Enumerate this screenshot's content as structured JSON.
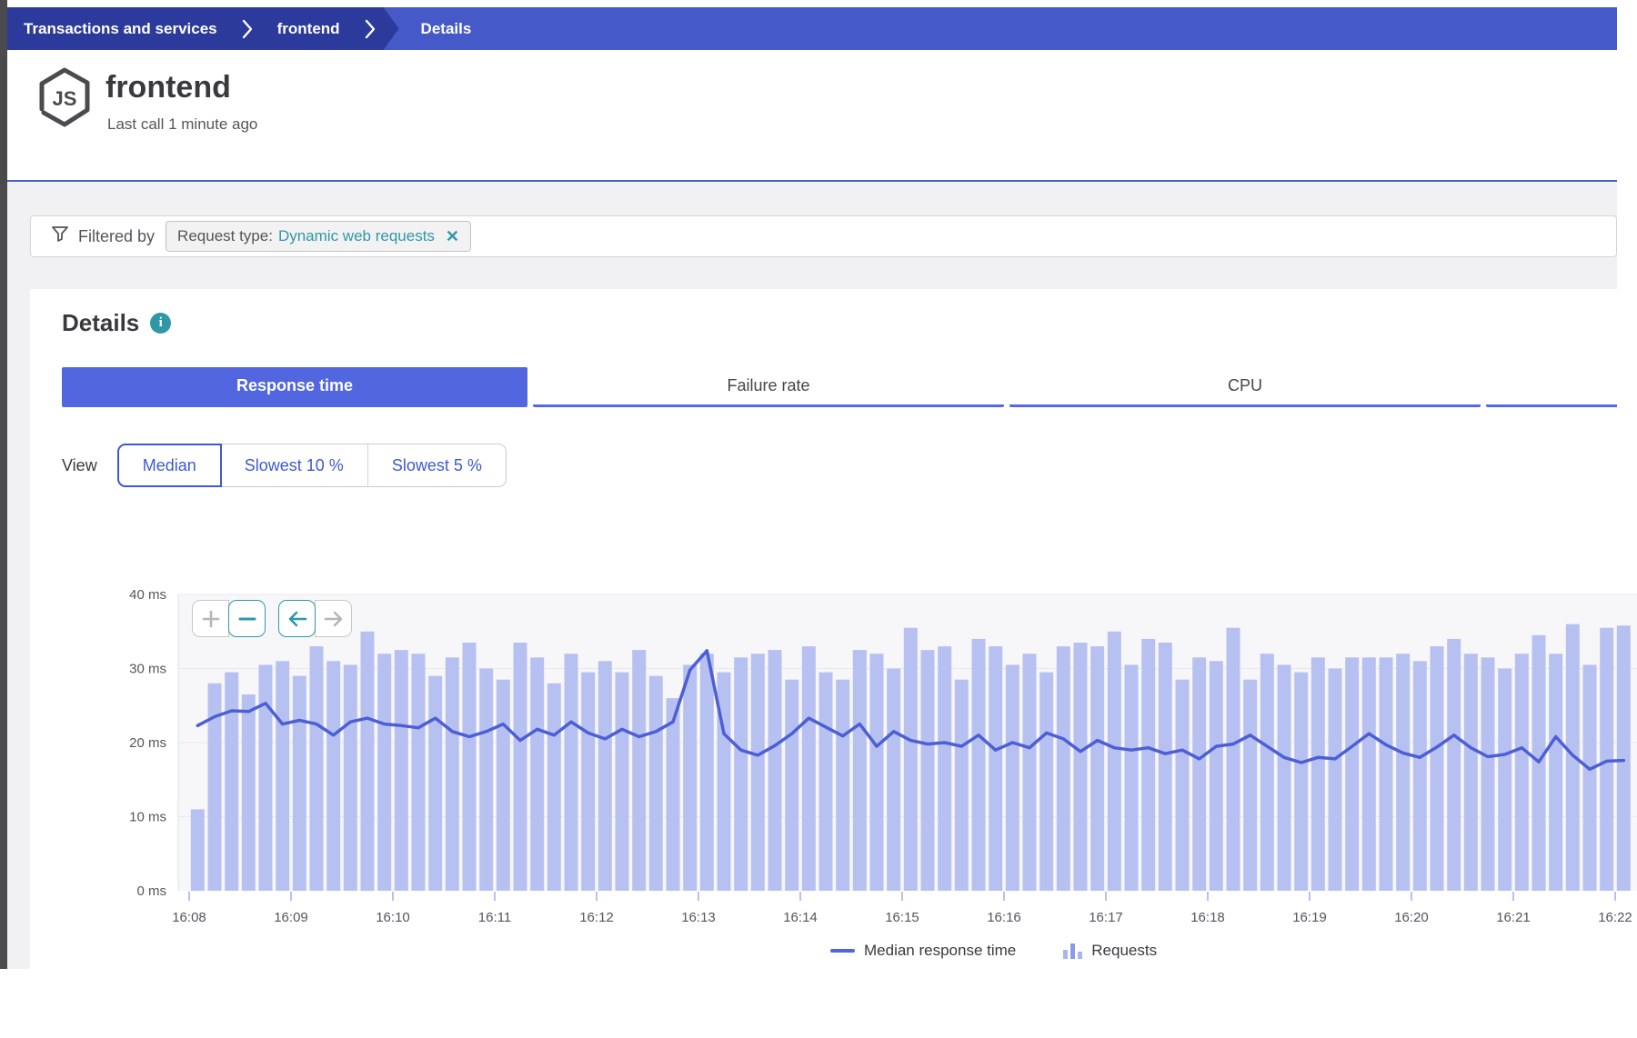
{
  "breadcrumb": {
    "items": [
      "Transactions and services",
      "frontend",
      "Details"
    ]
  },
  "header": {
    "title": "frontend",
    "subtitle": "Last call 1 minute ago",
    "icon": "nodejs-hexagon-icon"
  },
  "filter": {
    "label": "Filtered by",
    "chip": {
      "key": "Request type:",
      "value": "Dynamic web requests",
      "remove_icon": "close-icon"
    }
  },
  "details": {
    "title": "Details",
    "tabs": [
      {
        "label": "Response time",
        "active": true
      },
      {
        "label": "Failure rate",
        "active": false
      },
      {
        "label": "CPU",
        "active": false
      },
      {
        "label": "",
        "active": false
      }
    ],
    "view": {
      "label": "View",
      "options": [
        {
          "label": "Median",
          "selected": true
        },
        {
          "label": "Slowest 10 %",
          "selected": false
        },
        {
          "label": "Slowest 5 %",
          "selected": false
        }
      ]
    }
  },
  "zoom_controls": [
    {
      "name": "zoom-in",
      "enabled": false
    },
    {
      "name": "zoom-out",
      "enabled": true
    },
    {
      "name": "pan-left",
      "enabled": true
    },
    {
      "name": "pan-right",
      "enabled": false
    }
  ],
  "chart_data": {
    "type": "bar",
    "subtype": "combo bar + line",
    "title": "",
    "xlabel": "",
    "ylabel": "",
    "ylim": [
      0,
      40
    ],
    "y_tick_labels": [
      "0 ms",
      "10 ms",
      "20 ms",
      "30 ms",
      "40 ms"
    ],
    "x_tick_labels": [
      "16:08",
      "16:09",
      "16:10",
      "16:11",
      "16:12",
      "16:13",
      "16:14",
      "16:15",
      "16:16",
      "16:17",
      "16:18",
      "16:19",
      "16:20",
      "16:21",
      "16:22"
    ],
    "x_start": "16:08:00",
    "sample_interval_seconds": 10,
    "grid": "horizontal only",
    "legend_position": "bottom-center",
    "series": [
      {
        "name": "Requests",
        "type": "bar",
        "color": "#b7c1f1",
        "unit": "drawn height in ms-axis units (no request-count axis shown)",
        "values": [
          11,
          28,
          29.5,
          26.5,
          30.5,
          31,
          29,
          33,
          31,
          30.5,
          35,
          32,
          32.5,
          32,
          29,
          31.5,
          33.5,
          30,
          28.5,
          33.5,
          31.5,
          28,
          32,
          29.5,
          31,
          29.5,
          32.5,
          29,
          26,
          30.5,
          32,
          29.5,
          31.5,
          32,
          32.5,
          28.5,
          33,
          29.5,
          28.5,
          32.5,
          32,
          30,
          35.5,
          32.5,
          33,
          28.5,
          34,
          33,
          30.5,
          32,
          29.5,
          33,
          33.5,
          33,
          35,
          30.5,
          34,
          33.5,
          28.5,
          31.5,
          31,
          35.5,
          28.5,
          32,
          30.5,
          29.5,
          31.5,
          30,
          31.5,
          31.5,
          31.5,
          32,
          31,
          33,
          34,
          32,
          31.5,
          30,
          32,
          34.5,
          32,
          36,
          30.5,
          35.5,
          35.8
        ]
      },
      {
        "name": "Median response time",
        "type": "line",
        "color": "#4c5fd6",
        "unit": "ms",
        "values": [
          22.3,
          23.5,
          24.3,
          24.2,
          25.3,
          22.5,
          23,
          22.5,
          21,
          22.8,
          23.3,
          22.5,
          22.3,
          22,
          23.3,
          21.5,
          20.8,
          21.5,
          22.5,
          20.3,
          21.8,
          21,
          22.8,
          21.3,
          20.5,
          21.8,
          20.8,
          21.5,
          22.8,
          29.8,
          32.4,
          21.2,
          19,
          18.3,
          19.6,
          21.2,
          23.3,
          22.1,
          20.9,
          22.5,
          19.5,
          21.5,
          20.3,
          19.8,
          20,
          19.5,
          21,
          19,
          20,
          19.3,
          21.3,
          20.5,
          18.8,
          20.3,
          19.3,
          19,
          19.3,
          18.5,
          19,
          17.8,
          19.5,
          19.8,
          21,
          19.5,
          18,
          17.3,
          18,
          17.8,
          19.5,
          21.2,
          19.7,
          18.6,
          18,
          19.4,
          21,
          19.3,
          18.1,
          18.4,
          19.3,
          17.4,
          20.8,
          18.3,
          16.4,
          17.5,
          17.6
        ]
      }
    ],
    "legend": [
      "Median response time",
      "Requests"
    ]
  },
  "colors": {
    "topbar": "#4659c9",
    "crumb_dark": "#2c3a9c",
    "accent_blue": "#5266e0",
    "teal": "#2f98a8",
    "bar_fill": "#b7c1f1",
    "line_stroke": "#4c5fd6",
    "plot_bg": "#f7f7f9",
    "gridline": "#e9e9ec",
    "axis_text": "#55565a",
    "page_bg": "#f1f1f3",
    "side_strip": "#4b4b4d"
  }
}
